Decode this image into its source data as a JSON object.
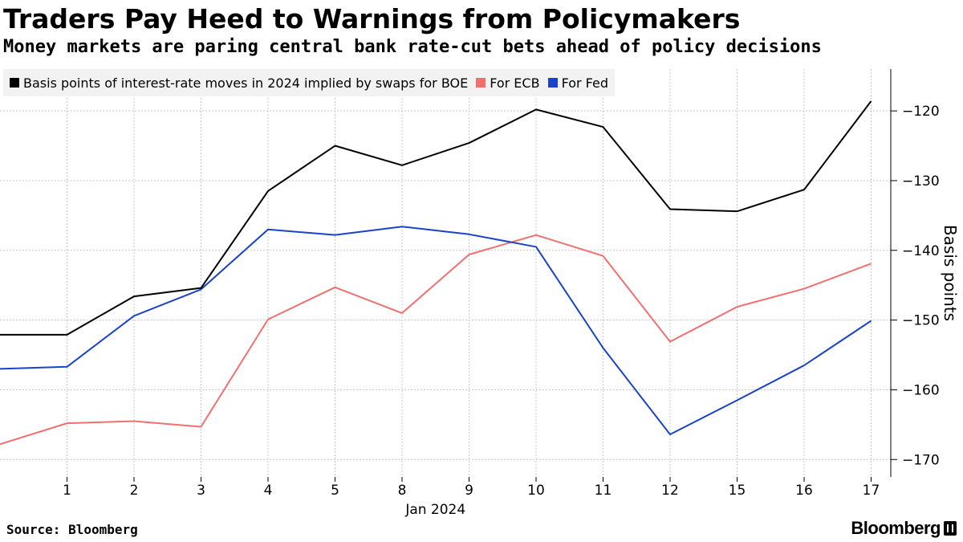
{
  "header": {
    "title": "Traders Pay Heed to Warnings from Policymakers",
    "subtitle": "Money markets are paring central bank rate-cut bets ahead of policy decisions"
  },
  "footer": {
    "source": "Source: Bloomberg",
    "brand": "Bloomberg"
  },
  "colors": {
    "boe": "#000000",
    "ecb": "#f07070",
    "fed": "#1a43c8",
    "grid": "#c8c8c8"
  },
  "chart_data": {
    "type": "line",
    "x": [
      "",
      "1",
      "2",
      "3",
      "4",
      "5",
      "8",
      "9",
      "10",
      "11",
      "12",
      "15",
      "16",
      "17"
    ],
    "x_group_label": "Jan 2024",
    "ylabel": "Basis points",
    "ylim": [
      -172.5,
      -114
    ],
    "yticks": [
      -120,
      -130,
      -140,
      -150,
      -160,
      -170
    ],
    "grid": true,
    "legend_position": "top-left",
    "series": [
      {
        "name": "Basis points of interest-rate moves in 2024 implied by swaps for BOE",
        "color_key": "boe",
        "values": [
          -152.1,
          -152.1,
          -146.6,
          -145.4,
          -131.5,
          -125.0,
          -127.8,
          -124.6,
          -119.8,
          -122.3,
          -134.1,
          -134.4,
          -131.3,
          -118.6
        ]
      },
      {
        "name": "For ECB",
        "color_key": "ecb",
        "values": [
          -167.8,
          -164.8,
          -164.5,
          -165.3,
          -149.9,
          -145.3,
          -149.0,
          -140.6,
          -137.8,
          -140.8,
          -153.1,
          -148.1,
          -145.5,
          -141.9
        ]
      },
      {
        "name": "For Fed",
        "color_key": "fed",
        "values": [
          -157.0,
          -156.7,
          -149.4,
          -145.6,
          -137.0,
          -137.8,
          -136.6,
          -137.7,
          -139.5,
          -154.0,
          -166.4,
          -161.5,
          -156.5,
          -150.1
        ]
      }
    ]
  }
}
